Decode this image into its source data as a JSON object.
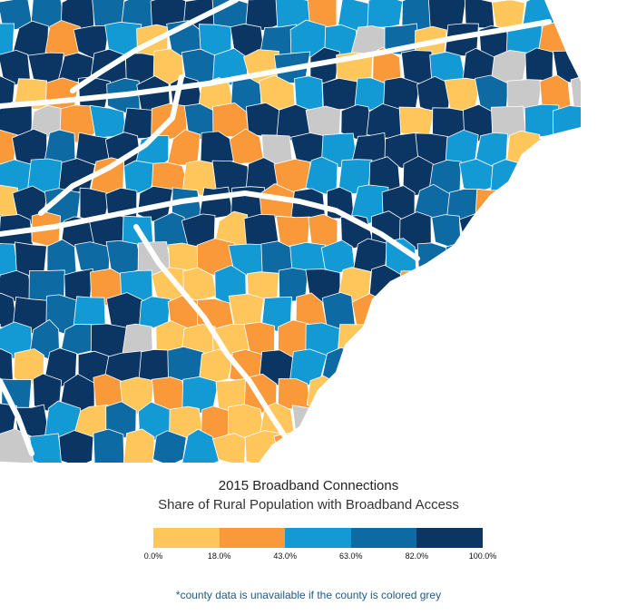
{
  "map": {
    "counties": "County-level choropleth of rural broadband access (southeastern US coastal states)"
  },
  "legend": {
    "title": "2015 Broadband Connections",
    "subtitle": "Share of Rural Population with Broadband Access",
    "bins": [
      {
        "from": "0.0%",
        "to": "18.0%",
        "color": "#ffc65c"
      },
      {
        "from": "18.0%",
        "to": "43.0%",
        "color": "#f9993a"
      },
      {
        "from": "43.0%",
        "to": "63.0%",
        "color": "#139ad4"
      },
      {
        "from": "63.0%",
        "to": "82.0%",
        "color": "#0e6aa3"
      },
      {
        "from": "82.0%",
        "to": "100.0%",
        "color": "#0b3563"
      }
    ],
    "ticks": [
      "0.0%",
      "18.0%",
      "43.0%",
      "63.0%",
      "82.0%",
      "100.0%"
    ],
    "missing_color": "#c9c9c9"
  },
  "note": "*county data is unavailable if the county is colored grey"
}
